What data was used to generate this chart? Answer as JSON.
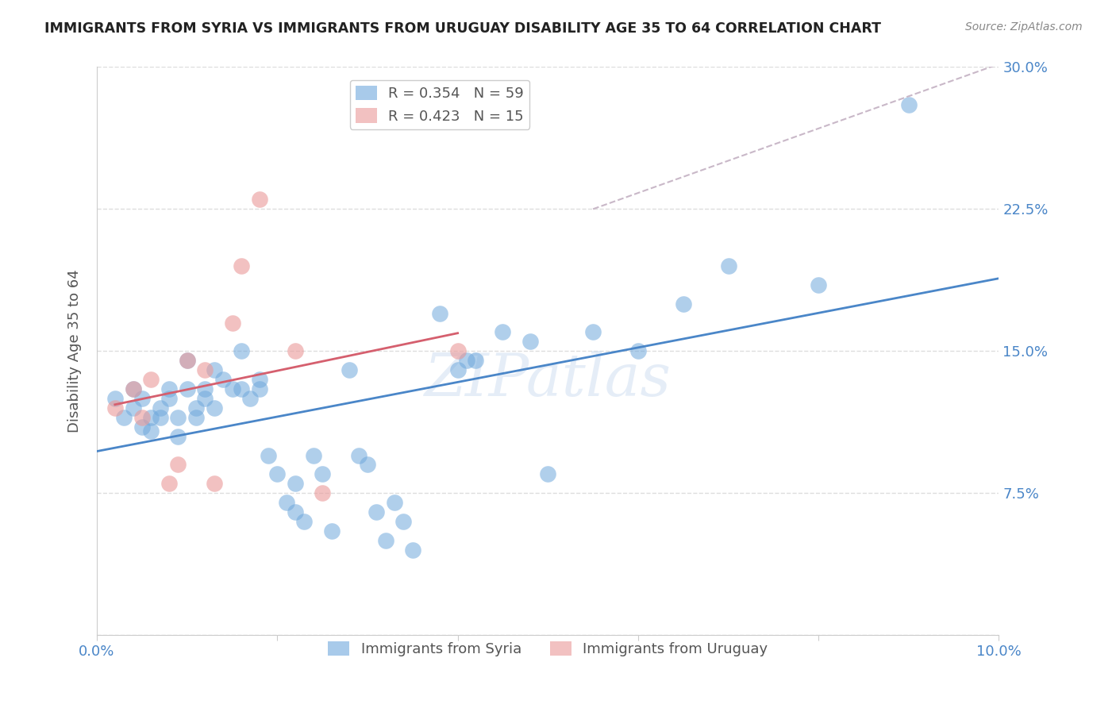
{
  "title": "IMMIGRANTS FROM SYRIA VS IMMIGRANTS FROM URUGUAY DISABILITY AGE 35 TO 64 CORRELATION CHART",
  "source": "Source: ZipAtlas.com",
  "ylabel": "Disability Age 35 to 64",
  "xlim": [
    0.0,
    0.1
  ],
  "ylim": [
    0.0,
    0.3
  ],
  "xticks": [
    0.0,
    0.02,
    0.04,
    0.06,
    0.08,
    0.1
  ],
  "xticklabels": [
    "0.0%",
    "",
    "",
    "",
    "",
    "10.0%"
  ],
  "yticks": [
    0.0,
    0.075,
    0.15,
    0.225,
    0.3
  ],
  "yticklabels": [
    "",
    "7.5%",
    "15.0%",
    "22.5%",
    "30.0%"
  ],
  "syria_color": "#6fa8dc",
  "uruguay_color": "#ea9999",
  "trendline_syria_color": "#4a86c8",
  "trendline_uruguay_color": "#d55f6e",
  "trendline_dashed_color": "#c9b8c8",
  "R_syria": 0.354,
  "N_syria": 59,
  "R_uruguay": 0.423,
  "N_uruguay": 15,
  "legend_label_syria": "Immigrants from Syria",
  "legend_label_uruguay": "Immigrants from Uruguay",
  "syria_x": [
    0.002,
    0.003,
    0.004,
    0.004,
    0.005,
    0.005,
    0.006,
    0.006,
    0.007,
    0.007,
    0.008,
    0.008,
    0.009,
    0.009,
    0.01,
    0.01,
    0.011,
    0.011,
    0.012,
    0.012,
    0.013,
    0.013,
    0.014,
    0.015,
    0.016,
    0.016,
    0.017,
    0.018,
    0.018,
    0.019,
    0.02,
    0.021,
    0.022,
    0.022,
    0.023,
    0.024,
    0.025,
    0.026,
    0.028,
    0.029,
    0.03,
    0.031,
    0.032,
    0.033,
    0.034,
    0.035,
    0.038,
    0.04,
    0.041,
    0.042,
    0.045,
    0.048,
    0.05,
    0.055,
    0.06,
    0.065,
    0.07,
    0.08,
    0.09
  ],
  "syria_y": [
    0.125,
    0.115,
    0.13,
    0.12,
    0.125,
    0.11,
    0.115,
    0.108,
    0.12,
    0.115,
    0.13,
    0.125,
    0.115,
    0.105,
    0.145,
    0.13,
    0.12,
    0.115,
    0.13,
    0.125,
    0.14,
    0.12,
    0.135,
    0.13,
    0.15,
    0.13,
    0.125,
    0.13,
    0.135,
    0.095,
    0.085,
    0.07,
    0.065,
    0.08,
    0.06,
    0.095,
    0.085,
    0.055,
    0.14,
    0.095,
    0.09,
    0.065,
    0.05,
    0.07,
    0.06,
    0.045,
    0.17,
    0.14,
    0.145,
    0.145,
    0.16,
    0.155,
    0.085,
    0.16,
    0.15,
    0.175,
    0.195,
    0.185,
    0.28
  ],
  "uruguay_x": [
    0.002,
    0.004,
    0.005,
    0.006,
    0.008,
    0.009,
    0.01,
    0.012,
    0.013,
    0.015,
    0.016,
    0.018,
    0.022,
    0.025,
    0.04
  ],
  "uruguay_y": [
    0.12,
    0.13,
    0.115,
    0.135,
    0.08,
    0.09,
    0.145,
    0.14,
    0.08,
    0.165,
    0.195,
    0.23,
    0.15,
    0.075,
    0.15
  ],
  "watermark": "ZIPatlas",
  "background_color": "#ffffff",
  "grid_color": "#dddddd"
}
